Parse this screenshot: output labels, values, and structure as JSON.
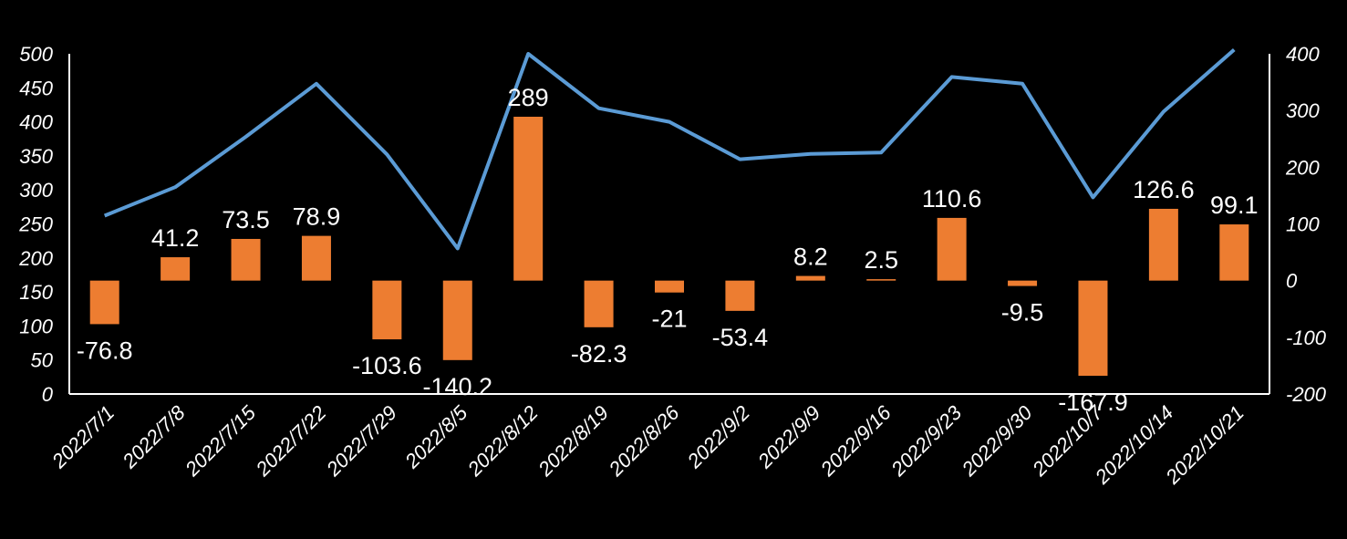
{
  "chart_data": {
    "type": "bar+line",
    "categories": [
      "2022/7/1",
      "2022/7/8",
      "2022/7/15",
      "2022/7/22",
      "2022/7/29",
      "2022/8/5",
      "2022/8/12",
      "2022/8/19",
      "2022/8/26",
      "2022/9/2",
      "2022/9/9",
      "2022/9/16",
      "2022/9/23",
      "2022/9/30",
      "2022/10/7",
      "2022/10/14",
      "2022/10/21"
    ],
    "series": [
      {
        "name": "bar",
        "axis": "right",
        "color": "#ED7D31",
        "values": [
          -76.8,
          41.2,
          73.5,
          78.9,
          -103.6,
          -140.2,
          289,
          -82.3,
          -21,
          -53.4,
          8.2,
          2.5,
          110.6,
          -9.5,
          -167.9,
          126.6,
          99.1
        ],
        "labels": [
          "-76.8",
          "41.2",
          "73.5",
          "78.9",
          "-103.6",
          "-140.2",
          "289",
          "-82.3",
          "-21",
          "-53.4",
          "8.2",
          "2.5",
          "110.6",
          "-9.5",
          "-167.9",
          "126.6",
          "99.1"
        ]
      },
      {
        "name": "line",
        "axis": "left",
        "color": "#5B9BD5",
        "values": [
          262,
          304,
          378,
          456,
          352,
          214,
          500,
          420,
          400,
          345,
          353,
          355,
          466,
          456,
          289,
          415,
          506
        ]
      }
    ],
    "y_left": {
      "min": 0,
      "max": 500,
      "ticks": [
        "0",
        "50",
        "100",
        "150",
        "200",
        "250",
        "300",
        "350",
        "400",
        "450",
        "500"
      ]
    },
    "y_right": {
      "min": -200,
      "max": 400,
      "ticks": [
        "-200",
        "-100",
        "0",
        "100",
        "200",
        "300",
        "400"
      ]
    },
    "title": "",
    "xlabel": "",
    "ylabel": ""
  }
}
